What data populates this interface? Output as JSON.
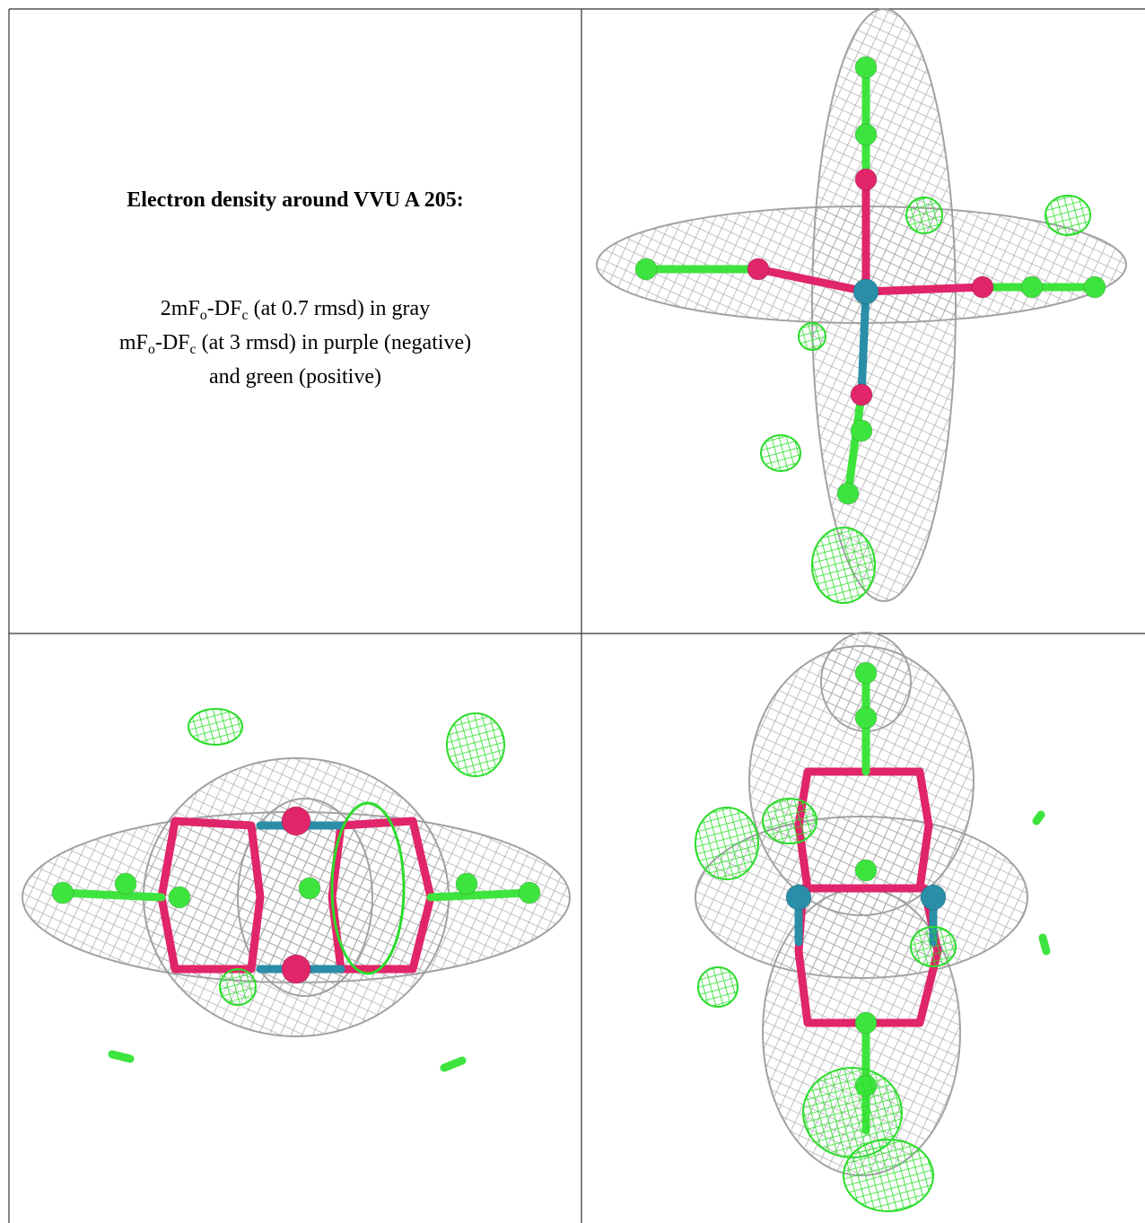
{
  "table": {
    "cell_text": {
      "title": "Electron density around VVU A 205:",
      "lines": [
        [
          {
            "text": "2mF"
          },
          {
            "text": "o",
            "sub": true
          },
          {
            "text": "-DF"
          },
          {
            "text": "c",
            "sub": true
          },
          {
            "text": " (at 0.7 rmsd) in gray"
          }
        ],
        [
          {
            "text": "mF"
          },
          {
            "text": "o",
            "sub": true
          },
          {
            "text": "-DF"
          },
          {
            "text": "c",
            "sub": true
          },
          {
            "text": " (at 3 rmsd) in purple (negative)"
          }
        ],
        [
          {
            "text": "and green (positive)"
          }
        ]
      ]
    }
  }
}
